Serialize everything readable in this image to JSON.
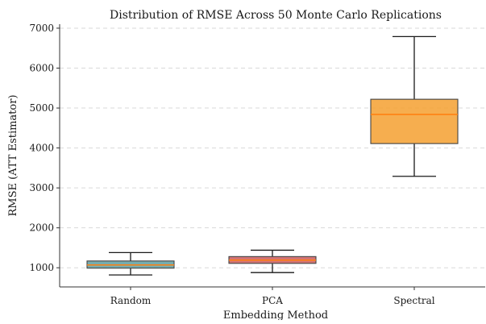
{
  "chart_data": {
    "type": "box",
    "title": "Distribution of RMSE Across 50 Monte Carlo Replications",
    "xlabel": "Embedding Method",
    "ylabel": "RMSE (ATT Estimator)",
    "ylim": [
      520,
      7100
    ],
    "yticks": [
      1000,
      2000,
      3000,
      4000,
      5000,
      6000,
      7000
    ],
    "grid": "horizontal dashed",
    "categories": [
      "Random",
      "PCA",
      "Spectral"
    ],
    "boxes": [
      {
        "name": "Random",
        "whisker_low": 820,
        "q1": 990,
        "median": 1070,
        "q3": 1170,
        "whisker_high": 1380,
        "color": "#5f9ea0",
        "median_color": "#ff7f0e"
      },
      {
        "name": "PCA",
        "whisker_low": 880,
        "q1": 1110,
        "median": 1190,
        "q3": 1280,
        "whisker_high": 1440,
        "color": "#cd5c5c",
        "median_color": "#ff7f0e"
      },
      {
        "name": "Spectral",
        "whisker_low": 3290,
        "q1": 4110,
        "median": 4840,
        "q3": 5220,
        "whisker_high": 6790,
        "color": "#f5a030",
        "median_color": "#ff7f0e"
      }
    ]
  }
}
